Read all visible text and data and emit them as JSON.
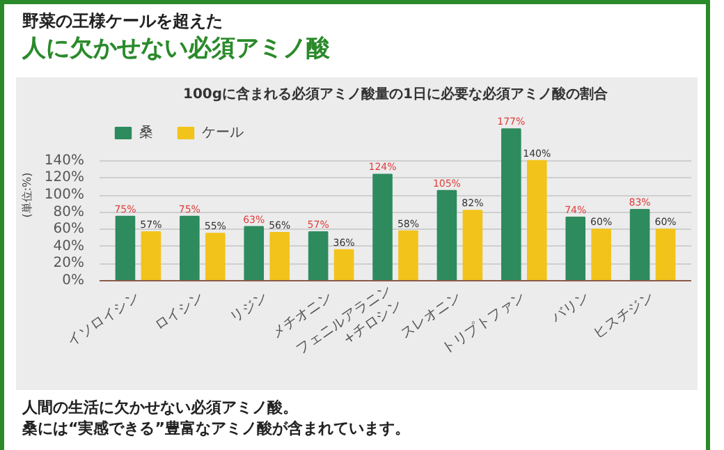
{
  "chart_data": {
    "type": "bar",
    "title": "100gに含まれる必須アミノ酸量の1日に必要な必須アミノ酸の割合",
    "ylabel": "(単位:%)",
    "annotations": [
      "野菜の王様ケールを超えた",
      "人に欠かせない必須アミノ酸",
      "人間の生活に欠かせない必須アミノ酸。",
      "桑には“実感できる”豊富なアミノ酸が含まれています。"
    ],
    "categories": [
      "イソロイシン",
      "ロイシン",
      "リジン",
      "メチオニン",
      "フェニルアラニン\n+チロシン",
      "スレオニン",
      "トリプトファン",
      "バリン",
      "ヒスチジン"
    ],
    "series": [
      {
        "name": "桑",
        "color": "#2e8b5e",
        "values": [
          75,
          75,
          63,
          57,
          124,
          105,
          177,
          74,
          83
        ],
        "value_labels": [
          "75%",
          "75%",
          "63%",
          "57%",
          "124%",
          "105%",
          "177%",
          "74%",
          "83%"
        ]
      },
      {
        "name": "ケール",
        "color": "#f2c31b",
        "values": [
          57,
          55,
          56,
          36,
          58,
          82,
          140,
          60,
          60
        ],
        "value_labels": [
          "57%",
          "55%",
          "56%",
          "36%",
          "58%",
          "82%",
          "140%",
          "60%",
          "60%"
        ]
      }
    ],
    "ylim": [
      0,
      200
    ],
    "yticks": [
      {
        "value": 0,
        "label": "0%"
      },
      {
        "value": 20,
        "label": "20%"
      },
      {
        "value": 40,
        "label": "40%"
      },
      {
        "value": 60,
        "label": "60%"
      },
      {
        "value": 80,
        "label": "80%"
      },
      {
        "value": 100,
        "label": "100%"
      },
      {
        "value": 120,
        "label": "120%"
      },
      {
        "value": 140,
        "label": "140%"
      }
    ],
    "grid": "y",
    "legend": "top left"
  }
}
